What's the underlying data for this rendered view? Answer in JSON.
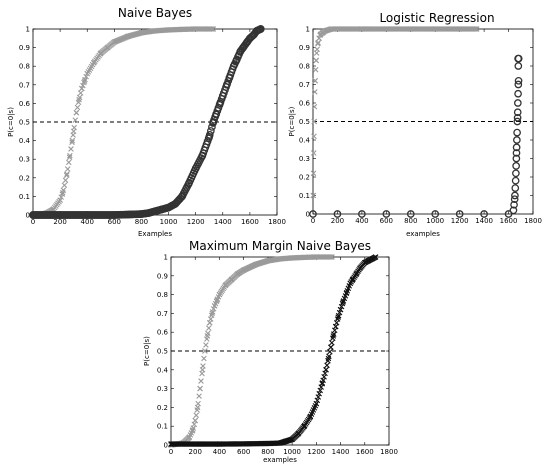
{
  "chart_data": [
    {
      "type": "scatter",
      "title": "Naive Bayes",
      "xlabel": "Examples",
      "ylabel": "P(c=0|s)",
      "xlim": [
        0,
        1800
      ],
      "ylim": [
        0,
        1
      ],
      "xticks": [
        "0",
        "200",
        "400",
        "600",
        "800",
        "1000",
        "1200",
        "1400",
        "1600",
        "1800"
      ],
      "yticks": [
        "0",
        "0.1",
        "0.2",
        "0.3",
        "0.4",
        "0.5",
        "0.6",
        "0.7",
        "0.8",
        "0.9",
        "1"
      ],
      "reference_line": 0.5,
      "series": [
        {
          "color": "#9a9a9a",
          "marker": "x",
          "x": [
            0,
            100,
            150,
            200,
            220,
            250,
            270,
            290,
            300,
            320,
            340,
            360,
            380,
            400,
            450,
            500,
            550,
            600,
            700,
            800,
            900,
            1000,
            1100,
            1200,
            1330
          ],
          "y": [
            0,
            0.01,
            0.03,
            0.08,
            0.12,
            0.22,
            0.31,
            0.4,
            0.45,
            0.55,
            0.62,
            0.68,
            0.72,
            0.76,
            0.82,
            0.87,
            0.9,
            0.93,
            0.96,
            0.98,
            0.99,
            0.995,
            0.998,
            1,
            1
          ]
        },
        {
          "color": "#333333",
          "marker": "o",
          "x": [
            0,
            200,
            400,
            600,
            800,
            850,
            900,
            950,
            1000,
            1050,
            1100,
            1150,
            1200,
            1250,
            1300,
            1330,
            1350,
            1380,
            1400,
            1430,
            1450,
            1480,
            1500,
            1530,
            1550,
            1580,
            1600,
            1630,
            1650,
            1680
          ],
          "y": [
            0,
            0,
            0,
            0,
            0.005,
            0.01,
            0.02,
            0.03,
            0.04,
            0.06,
            0.1,
            0.17,
            0.25,
            0.32,
            0.42,
            0.5,
            0.54,
            0.6,
            0.64,
            0.7,
            0.74,
            0.8,
            0.83,
            0.88,
            0.9,
            0.93,
            0.95,
            0.97,
            0.99,
            1
          ]
        }
      ]
    },
    {
      "type": "scatter",
      "title": "Logistic Regression",
      "xlabel": "examples",
      "ylabel": "P(c=0|s)",
      "xlim": [
        0,
        1800
      ],
      "ylim": [
        0,
        1
      ],
      "xticks": [
        "0",
        "200",
        "400",
        "600",
        "800",
        "1000",
        "1200",
        "1400",
        "1600",
        "1800"
      ],
      "yticks": [
        "0",
        "0.1",
        "0.2",
        "0.3",
        "0.4",
        "0.5",
        "0.6",
        "0.7",
        "0.8",
        "0.9",
        "1"
      ],
      "reference_line": 0.5,
      "series": [
        {
          "color": "#9a9a9a",
          "marker": "x",
          "x": [
            2,
            4,
            6,
            8,
            10,
            12,
            15,
            18,
            22,
            26,
            30,
            40,
            50,
            60,
            80,
            100,
            150,
            200,
            400,
            600,
            800,
            1000,
            1200,
            1340
          ],
          "y": [
            0.1,
            0.22,
            0.33,
            0.42,
            0.5,
            0.58,
            0.66,
            0.72,
            0.78,
            0.83,
            0.87,
            0.92,
            0.95,
            0.97,
            0.98,
            0.99,
            1,
            1,
            1,
            1,
            1,
            1,
            1,
            1
          ]
        },
        {
          "color": "#333333",
          "marker": "o",
          "x": [
            0,
            200,
            400,
            600,
            800,
            1000,
            1200,
            1400,
            1600,
            1640,
            1645,
            1650,
            1652,
            1655,
            1658,
            1660,
            1662,
            1664,
            1665,
            1666,
            1668,
            1670,
            1672,
            1674,
            1675,
            1676,
            1678,
            1680,
            1682,
            1680,
            1678,
            1683
          ],
          "y": [
            0,
            0,
            0,
            0,
            0,
            0,
            0,
            0,
            0,
            0.02,
            0.05,
            0.08,
            0.1,
            0.14,
            0.18,
            0.22,
            0.26,
            0.3,
            0.33,
            0.36,
            0.4,
            0.44,
            0.5,
            0.52,
            0.55,
            0.6,
            0.65,
            0.7,
            0.72,
            0.8,
            0.84,
            0.84
          ]
        }
      ]
    },
    {
      "type": "scatter",
      "title": "Maximum Margin Naive Bayes",
      "xlabel": "examples",
      "ylabel": "P(c=0|s)",
      "xlim": [
        0,
        1800
      ],
      "ylim": [
        0,
        1
      ],
      "xticks": [
        "0",
        "200",
        "400",
        "600",
        "800",
        "1000",
        "1200",
        "1400",
        "1600",
        "1800"
      ],
      "yticks": [
        "0",
        "0.1",
        "0.2",
        "0.3",
        "0.4",
        "0.5",
        "0.6",
        "0.7",
        "0.8",
        "0.9",
        "1"
      ],
      "reference_line": 0.5,
      "series": [
        {
          "color": "#9a9a9a",
          "marker": "x",
          "x": [
            0,
            100,
            150,
            180,
            200,
            220,
            240,
            260,
            280,
            300,
            320,
            340,
            360,
            380,
            400,
            450,
            500,
            550,
            600,
            700,
            800,
            900,
            1000,
            1100,
            1200,
            1330
          ],
          "y": [
            0,
            0.01,
            0.04,
            0.08,
            0.13,
            0.2,
            0.3,
            0.4,
            0.5,
            0.58,
            0.65,
            0.7,
            0.74,
            0.77,
            0.8,
            0.85,
            0.88,
            0.91,
            0.93,
            0.96,
            0.98,
            0.99,
            0.995,
            0.998,
            1,
            1
          ]
        },
        {
          "color": "#111111",
          "marker": "x",
          "x": [
            0,
            200,
            400,
            600,
            800,
            900,
            950,
            1000,
            1050,
            1100,
            1150,
            1200,
            1250,
            1280,
            1300,
            1320,
            1340,
            1360,
            1380,
            1400,
            1420,
            1450,
            1480,
            1500,
            1530,
            1560,
            1600,
            1630,
            1660,
            1690
          ],
          "y": [
            0.005,
            0.005,
            0.005,
            0.006,
            0.008,
            0.01,
            0.02,
            0.03,
            0.06,
            0.1,
            0.15,
            0.22,
            0.33,
            0.4,
            0.46,
            0.52,
            0.58,
            0.63,
            0.68,
            0.72,
            0.76,
            0.81,
            0.86,
            0.88,
            0.91,
            0.94,
            0.97,
            0.98,
            0.99,
            1
          ]
        }
      ]
    }
  ]
}
